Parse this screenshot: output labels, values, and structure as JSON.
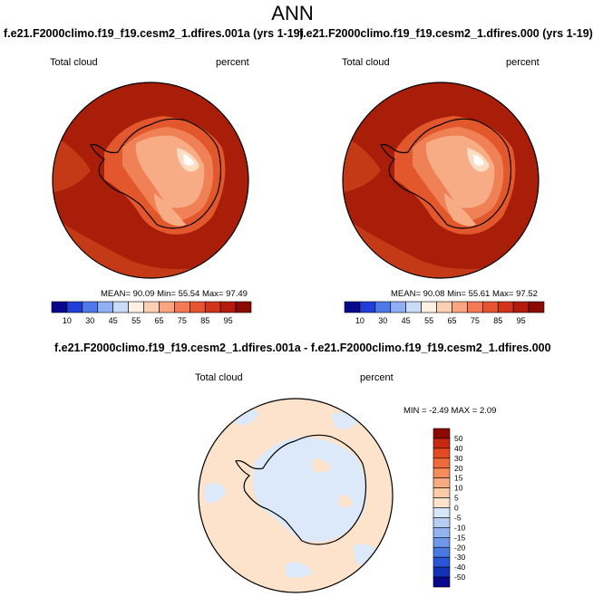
{
  "page_title": "ANN",
  "variable": "Total cloud",
  "units": "percent",
  "panels": [
    {
      "case": "f.e21.F2000climo.f19_f19.cesm2_1.dfires.001a (yrs 1-19)",
      "stats": {
        "mean_label": "MEAN=",
        "mean": "90.09",
        "min_label": "Min=",
        "min": "55.54",
        "max_label": "Max=",
        "max": "97.49"
      }
    },
    {
      "case": "f.e21.F2000climo.f19_f19.cesm2_1.dfires.000 (yrs 1-19)",
      "stats": {
        "mean_label": "MEAN=",
        "mean": "90.08",
        "min_label": "Min=",
        "min": "55.61",
        "max_label": "Max=",
        "max": "97.52"
      }
    }
  ],
  "diff": {
    "title": "f.e21.F2000climo.f19_f19.cesm2_1.dfires.001a - f.e21.F2000climo.f19_f19.cesm2_1.dfires.000",
    "min_label": "MIN =",
    "min": "-2.49",
    "max_label": "MAX =",
    "max": "2.09"
  },
  "colorbar_main": {
    "labels": [
      "10",
      "30",
      "45",
      "55",
      "65",
      "75",
      "85",
      "95"
    ],
    "colors": [
      "#08088c",
      "#1f3fd8",
      "#4d7ae8",
      "#8fb0f2",
      "#c9dbf7",
      "#fdf1e3",
      "#fcd0b3",
      "#f9a582",
      "#f37a55",
      "#e65431",
      "#d03519",
      "#b51b0c",
      "#8c0a04"
    ]
  },
  "colorbar_diff": {
    "labels": [
      "50",
      "40",
      "30",
      "20",
      "15",
      "10",
      "5",
      "0",
      "-5",
      "-10",
      "-15",
      "-20",
      "-30",
      "-40",
      "-50"
    ],
    "colors": [
      "#8c0a04",
      "#c8280f",
      "#e44a22",
      "#f06a3b",
      "#f58a5a",
      "#f8ab82",
      "#fbcba8",
      "#fde3cc",
      "#d6e6f8",
      "#b6cef3",
      "#93b4ee",
      "#6e98ea",
      "#4a79e4",
      "#2a55d6",
      "#1432b8",
      "#08088c"
    ]
  },
  "map_colors": {
    "ocean_high": "#a81e08",
    "ocean_mid": "#c43a17",
    "land_1": "#e2572c",
    "land_2": "#f08156",
    "land_3": "#f8ac86",
    "land_4": "#fddcc4",
    "land_5": "#ffffff",
    "diff_pos": "#fde3cc",
    "diff_neg": "#dbe9fa"
  }
}
